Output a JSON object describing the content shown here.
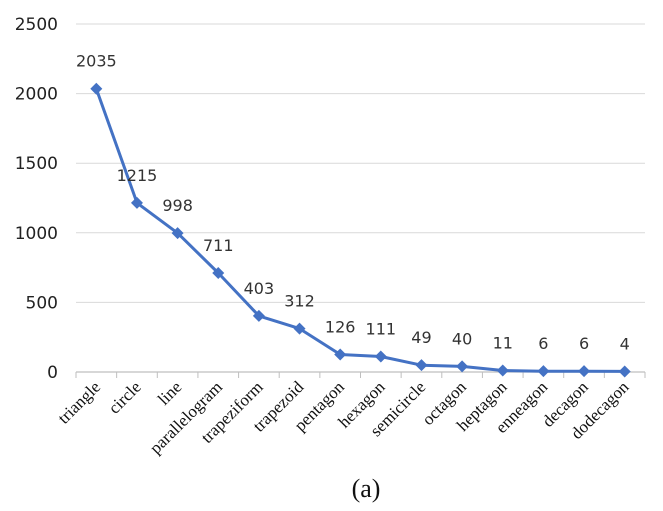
{
  "chart_data": {
    "type": "line",
    "categories": [
      "triangle",
      "circle",
      "line",
      "parallelogram",
      "trapeziform",
      "trapezoid",
      "pentagon",
      "hexagon",
      "semicircle",
      "octagon",
      "heptagon",
      "enneagon",
      "decagon",
      "dodecagon"
    ],
    "values": [
      2035,
      1215,
      998,
      711,
      403,
      312,
      126,
      111,
      49,
      40,
      11,
      6,
      6,
      4
    ],
    "data_labels": [
      "2035",
      "1215",
      "998",
      "711",
      "403",
      "312",
      "126",
      "111",
      "49",
      "40",
      "11",
      "6",
      "6",
      "4"
    ],
    "ylim": [
      0,
      2500
    ],
    "yticks": [
      "0",
      "500",
      "1000",
      "1500",
      "2000",
      "2500"
    ],
    "grid": "horizontal",
    "marker": "diamond",
    "caption": "(a)"
  },
  "colors": {
    "series": "#4472C4",
    "grid": "#d9d9d9",
    "axis": "#bfbfbf"
  }
}
